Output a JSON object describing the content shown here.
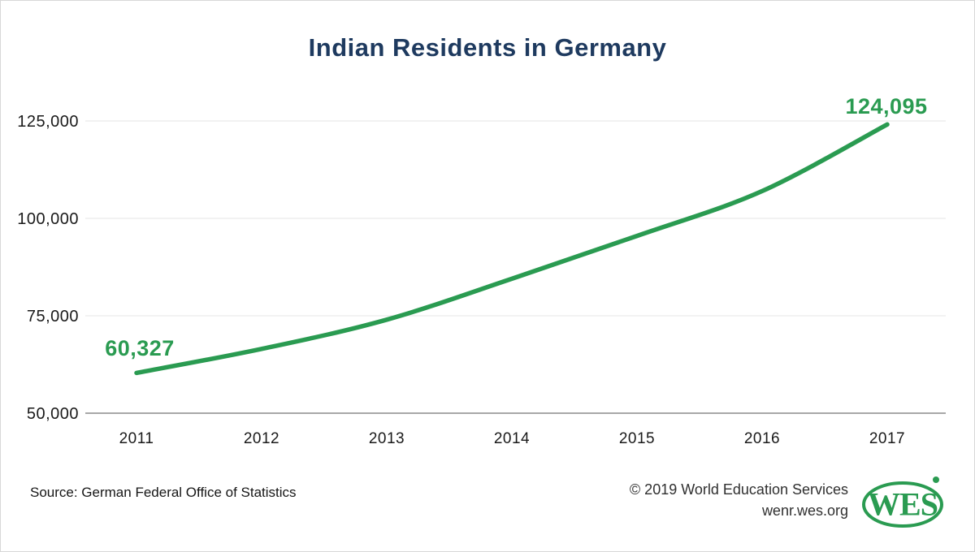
{
  "colors": {
    "green": "#2A9B51",
    "navy": "#1E3A5F",
    "grid": "#E9E9E9",
    "axis": "#8C8C8C",
    "tick_text": "#1A1A1A",
    "footer_text": "#303030",
    "border": "#D8D8D8"
  },
  "header": {
    "title": "Indian Residents in Germany"
  },
  "chart_data": {
    "type": "line",
    "title": "Indian Residents in Germany",
    "categories": [
      "2011",
      "2012",
      "2013",
      "2014",
      "2015",
      "2016",
      "2017"
    ],
    "series": [
      {
        "name": "Indian residents in Germany",
        "color": "#2A9B51",
        "values": [
          60327,
          66500,
          74000,
          84500,
          95500,
          107000,
          124095
        ]
      }
    ],
    "point_labels": {
      "first": "60,327",
      "last": "124,095"
    },
    "y_ticks": [
      {
        "label": "50,000",
        "value": 50000
      },
      {
        "label": "75,000",
        "value": 75000
      },
      {
        "label": "100,000",
        "value": 100000
      },
      {
        "label": "125,000",
        "value": 125000
      }
    ],
    "ylim": [
      50000,
      131000
    ],
    "grid": true,
    "legend": "none"
  },
  "footer": {
    "source": "Source: German Federal Office of Statistics",
    "copyright": "© 2019 World Education Services",
    "website": "wenr.wes.org",
    "logo_text": "WES"
  }
}
